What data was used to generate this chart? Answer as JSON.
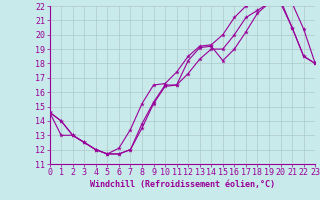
{
  "xlabel": "Windchill (Refroidissement éolien,°C)",
  "bg_color": "#c8eaea",
  "line_color": "#990099",
  "grid_color": "#b0c8c8",
  "xlim": [
    0,
    23
  ],
  "ylim": [
    11,
    22
  ],
  "xticks": [
    0,
    1,
    2,
    3,
    4,
    5,
    6,
    7,
    8,
    9,
    10,
    11,
    12,
    13,
    14,
    15,
    16,
    17,
    18,
    19,
    20,
    21,
    22,
    23
  ],
  "yticks": [
    11,
    12,
    13,
    14,
    15,
    16,
    17,
    18,
    19,
    20,
    21,
    22
  ],
  "line1_x": [
    0,
    1,
    2,
    3,
    4,
    5,
    6,
    7,
    8,
    9,
    10,
    11,
    12,
    13,
    14,
    15,
    16,
    17,
    18,
    19,
    20,
    21,
    22,
    23
  ],
  "line1_y": [
    14.6,
    14.0,
    13.0,
    12.5,
    12.0,
    11.7,
    11.7,
    12.0,
    13.5,
    15.2,
    16.4,
    16.5,
    17.3,
    18.3,
    19.0,
    19.0,
    20.0,
    21.2,
    21.7,
    22.2,
    22.2,
    20.5,
    18.5,
    18.0
  ],
  "line2_x": [
    0,
    1,
    2,
    3,
    4,
    5,
    6,
    7,
    8,
    9,
    10,
    11,
    12,
    13,
    14,
    15,
    16,
    17,
    18,
    19,
    20,
    21,
    22,
    23
  ],
  "line2_y": [
    14.6,
    14.0,
    13.0,
    12.5,
    12.0,
    11.7,
    12.1,
    13.4,
    15.2,
    16.5,
    16.6,
    17.4,
    18.5,
    19.2,
    19.3,
    20.0,
    21.2,
    22.0,
    22.2,
    22.5,
    22.4,
    20.5,
    18.5,
    18.0
  ],
  "line3_x": [
    0,
    1,
    2,
    3,
    4,
    5,
    6,
    7,
    8,
    9,
    10,
    11,
    12,
    13,
    14,
    15,
    16,
    17,
    18,
    19,
    20,
    21,
    22,
    23
  ],
  "line3_y": [
    14.6,
    13.0,
    13.0,
    12.5,
    12.0,
    11.7,
    11.7,
    12.0,
    13.8,
    15.3,
    16.5,
    16.5,
    18.2,
    19.1,
    19.2,
    18.2,
    19.0,
    20.2,
    21.5,
    22.2,
    22.2,
    22.2,
    20.4,
    18.0
  ],
  "font_size": 6
}
